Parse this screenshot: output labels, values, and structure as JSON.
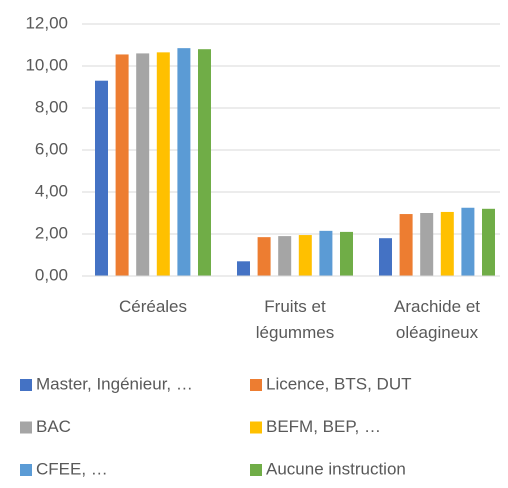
{
  "chart_data": {
    "type": "bar",
    "categories": [
      "Céréales",
      "Fruits et légummes",
      "Arachide et oléagineux"
    ],
    "series": [
      {
        "name": "Master, Ingénieur, …",
        "color": "#4472c4",
        "values": [
          9.3,
          0.7,
          1.8
        ]
      },
      {
        "name": "Licence, BTS, DUT",
        "color": "#ed7d31",
        "values": [
          10.55,
          1.85,
          2.95
        ]
      },
      {
        "name": "BAC",
        "color": "#a5a5a5",
        "values": [
          10.6,
          1.9,
          3.0
        ]
      },
      {
        "name": "BEFM, BEP, …",
        "color": "#ffc000",
        "values": [
          10.65,
          1.95,
          3.05
        ]
      },
      {
        "name": "CFEE, …",
        "color": "#5b9bd5",
        "values": [
          10.85,
          2.15,
          3.25
        ]
      },
      {
        "name": "Aucune instruction",
        "color": "#70ad47",
        "values": [
          10.8,
          2.1,
          3.2
        ]
      }
    ],
    "ylim": [
      0,
      12
    ],
    "yticks": [
      {
        "value": 0,
        "label": "0,00"
      },
      {
        "value": 2,
        "label": "2,00"
      },
      {
        "value": 4,
        "label": "4,00"
      },
      {
        "value": 6,
        "label": "6,00"
      },
      {
        "value": 8,
        "label": "8,00"
      },
      {
        "value": 10,
        "label": "10,00"
      },
      {
        "value": 12,
        "label": "12,00"
      }
    ],
    "grid": true,
    "legend": "bottom"
  }
}
